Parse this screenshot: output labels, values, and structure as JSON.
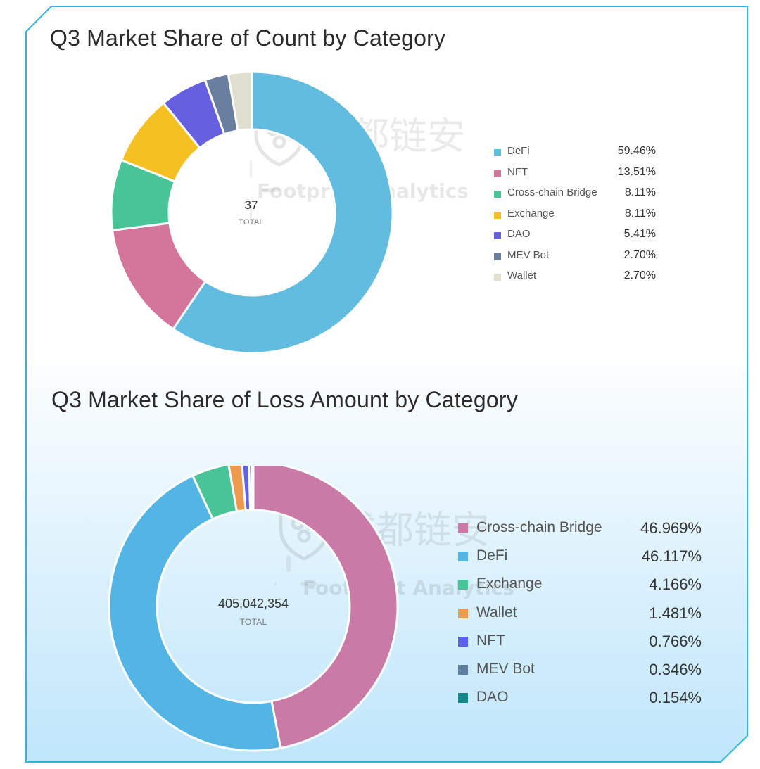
{
  "colors": {
    "frame_stroke": "#33b6d6",
    "bg_top": "#ffffff",
    "bg_bottom": "#bfe6fb"
  },
  "chart_data": [
    {
      "type": "pie",
      "style": "donut",
      "title": "Q3 Market Share of Count by Category",
      "center_value": "37",
      "center_label": "TOTAL",
      "legend_position": "right",
      "slices": [
        {
          "label": "DeFi",
          "value": 59.46,
          "display": "59.46%",
          "color": "#62bce0"
        },
        {
          "label": "NFT",
          "value": 13.51,
          "display": "13.51%",
          "color": "#d4759c"
        },
        {
          "label": "Cross-chain Bridge",
          "value": 8.11,
          "display": "8.11%",
          "color": "#48c497"
        },
        {
          "label": "Exchange",
          "value": 8.11,
          "display": "8.11%",
          "color": "#f5c022"
        },
        {
          "label": "DAO",
          "value": 5.41,
          "display": "5.41%",
          "color": "#6560e0"
        },
        {
          "label": "MEV Bot",
          "value": 2.7,
          "display": "2.70%",
          "color": "#6a7fa0"
        },
        {
          "label": "Wallet",
          "value": 2.7,
          "display": "2.70%",
          "color": "#dedfcf"
        }
      ]
    },
    {
      "type": "pie",
      "style": "donut",
      "title": "Q3 Market Share of Loss Amount by Category",
      "center_value": "405,042,354",
      "center_label": "TOTAL",
      "legend_position": "right",
      "slices": [
        {
          "label": "Cross-chain Bridge",
          "value": 46.969,
          "display": "46.969%",
          "color": "#c97aa7"
        },
        {
          "label": "DeFi",
          "value": 46.117,
          "display": "46.117%",
          "color": "#52b5e4"
        },
        {
          "label": "Exchange",
          "value": 4.166,
          "display": "4.166%",
          "color": "#48c497"
        },
        {
          "label": "Wallet",
          "value": 1.481,
          "display": "1.481%",
          "color": "#ee9a4c"
        },
        {
          "label": "NFT",
          "value": 0.766,
          "display": "0.766%",
          "color": "#5d62ec"
        },
        {
          "label": "MEV Bot",
          "value": 0.346,
          "display": "0.346%",
          "color": "#5c7ea0"
        },
        {
          "label": "DAO",
          "value": 0.154,
          "display": "0.154%",
          "color": "#138a8a"
        }
      ]
    }
  ],
  "watermarks": [
    {
      "brand": "成都链安",
      "logo": "shield-logo",
      "tagline": "Footprint Analytics",
      "tagline_logo": "sunburst-logo"
    },
    {
      "brand": "成都链安",
      "logo": "shield-logo",
      "tagline": "Footprint Analytics",
      "tagline_logo": "sunburst-logo"
    }
  ]
}
